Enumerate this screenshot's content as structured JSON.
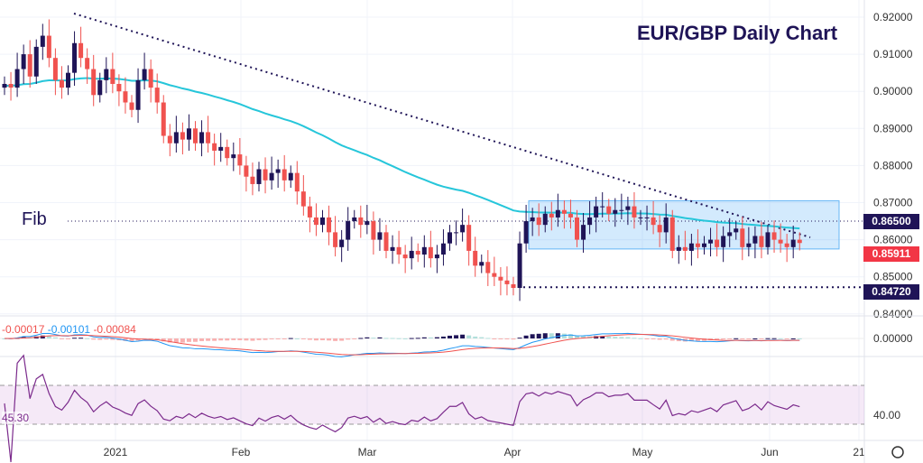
{
  "title": "EUR/GBP Daily Chart",
  "fib_label": "Fib",
  "price_tags": [
    {
      "text": "0.86500",
      "color": "#1f1457",
      "value": 0.865
    },
    {
      "text": "0.85911",
      "color": "#f23645",
      "value": 0.85911
    },
    {
      "text": "0.84720",
      "color": "#1f1457",
      "value": 0.8472
    }
  ],
  "macd_values": [
    "-0.00017",
    "-0.00101",
    "-0.00084"
  ],
  "rsi_value": "45.30",
  "rsi_axis_label": "40.00",
  "macd_axis_label": "0.00000",
  "chart_data": {
    "type": "candlestick",
    "title": "EUR/GBP Daily Chart",
    "y_ticks": [
      "0.92000",
      "0.91000",
      "0.90000",
      "0.89000",
      "0.88000",
      "0.87000",
      "0.86000",
      "0.85000",
      "0.84000"
    ],
    "ylim": [
      0.84,
      0.92
    ],
    "x_ticks": [
      "2021",
      "Feb",
      "Mar",
      "Apr",
      "May",
      "Jun",
      "21"
    ],
    "closes": [
      0.902,
      0.901,
      0.906,
      0.91,
      0.904,
      0.912,
      0.915,
      0.909,
      0.903,
      0.901,
      0.905,
      0.913,
      0.909,
      0.906,
      0.899,
      0.903,
      0.906,
      0.902,
      0.9,
      0.897,
      0.895,
      0.903,
      0.906,
      0.901,
      0.897,
      0.888,
      0.886,
      0.889,
      0.887,
      0.89,
      0.886,
      0.889,
      0.886,
      0.884,
      0.885,
      0.882,
      0.883,
      0.88,
      0.877,
      0.875,
      0.879,
      0.876,
      0.878,
      0.879,
      0.876,
      0.878,
      0.873,
      0.869,
      0.866,
      0.864,
      0.866,
      0.862,
      0.858,
      0.86,
      0.865,
      0.866,
      0.864,
      0.865,
      0.86,
      0.862,
      0.857,
      0.858,
      0.856,
      0.855,
      0.857,
      0.856,
      0.858,
      0.855,
      0.856,
      0.859,
      0.862,
      0.862,
      0.864,
      0.857,
      0.853,
      0.854,
      0.851,
      0.85,
      0.849,
      0.848,
      0.847,
      0.859,
      0.865,
      0.866,
      0.864,
      0.867,
      0.866,
      0.868,
      0.867,
      0.866,
      0.86,
      0.864,
      0.866,
      0.869,
      0.869,
      0.867,
      0.868,
      0.868,
      0.869,
      0.866,
      0.866,
      0.866,
      0.864,
      0.862,
      0.866,
      0.857,
      0.858,
      0.857,
      0.859,
      0.858,
      0.859,
      0.86,
      0.858,
      0.861,
      0.862,
      0.863,
      0.858,
      0.859,
      0.861,
      0.858,
      0.862,
      0.86,
      0.859,
      0.858,
      0.86,
      0.85911
    ],
    "fib_level": 0.865,
    "low_level": 0.8472,
    "range_box": [
      0.8575,
      0.8705
    ],
    "colors": {
      "up": "#1f1457",
      "down": "#f0524f",
      "ma": "#26c6da",
      "rsi": "#7b2a8c"
    }
  }
}
